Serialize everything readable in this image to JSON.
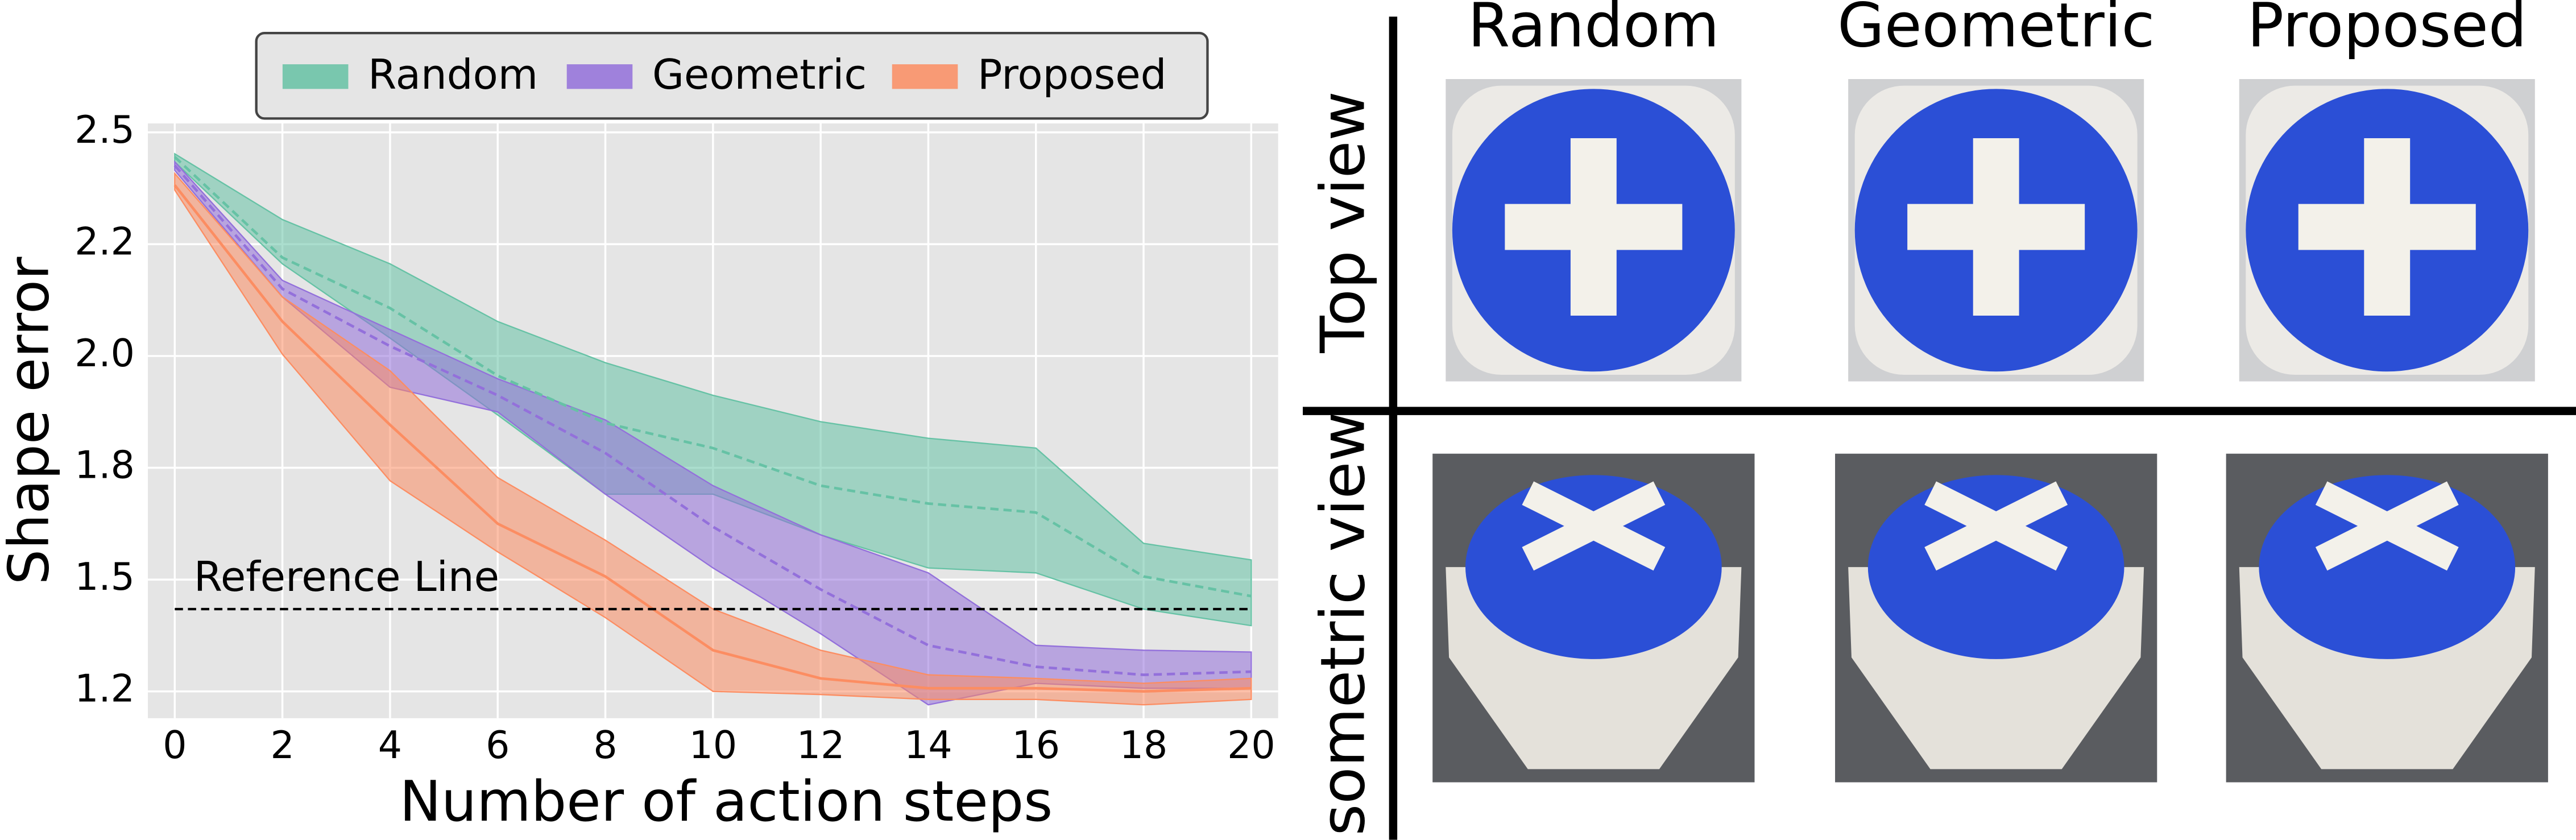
{
  "chart_data": {
    "type": "line",
    "x": [
      0,
      2,
      4,
      6,
      8,
      10,
      12,
      14,
      16,
      18,
      20
    ],
    "xlim": [
      -0.5,
      20.5
    ],
    "xticks": [
      0,
      2,
      4,
      6,
      8,
      10,
      12,
      14,
      16,
      18,
      20
    ],
    "ylim": [
      1.19,
      2.52
    ],
    "yticks": [
      {
        "value": 1.25,
        "label": "1.2"
      },
      1.5,
      {
        "value": 1.75,
        "label": "1.8"
      },
      {
        "value": 2,
        "label": "2.0"
      },
      {
        "value": 2.25,
        "label": "2.2"
      },
      2.5
    ],
    "xlabel": "Number of action steps",
    "ylabel": "Shape error",
    "grid": true,
    "legend": "top",
    "series": [
      {
        "name": "Random",
        "color": "#66c2a5",
        "values": [
          2.445,
          2.22,
          2.107,
          1.956,
          1.85,
          1.794,
          1.71,
          1.67,
          1.65,
          1.507,
          1.463
        ],
        "upper": [
          2.452,
          2.305,
          2.206,
          2.077,
          1.985,
          1.912,
          1.853,
          1.816,
          1.794,
          1.581,
          1.544
        ],
        "lower": [
          2.434,
          2.206,
          2.04,
          1.868,
          1.691,
          1.691,
          1.6,
          1.526,
          1.515,
          1.434,
          1.397
        ]
      },
      {
        "name": "Geometric",
        "color": "#9370db",
        "values": [
          2.426,
          2.15,
          2.022,
          1.912,
          1.783,
          1.618,
          1.478,
          1.353,
          1.305,
          1.287,
          1.294
        ],
        "upper": [
          2.434,
          2.169,
          2.059,
          1.949,
          1.857,
          1.71,
          1.6,
          1.515,
          1.353,
          1.342,
          1.338
        ],
        "lower": [
          2.415,
          2.132,
          1.93,
          1.875,
          1.691,
          1.526,
          1.379,
          1.22,
          1.268,
          1.257,
          1.257
        ]
      },
      {
        "name": "Proposed",
        "color": "#fc8d62",
        "values": [
          2.382,
          2.077,
          1.846,
          1.625,
          1.507,
          1.342,
          1.279,
          1.257,
          1.257,
          1.25,
          1.257
        ],
        "upper": [
          2.408,
          2.132,
          1.967,
          1.728,
          1.588,
          1.434,
          1.342,
          1.287,
          1.279,
          1.268,
          1.279
        ],
        "lower": [
          2.371,
          2.004,
          1.721,
          1.562,
          1.415,
          1.25,
          1.243,
          1.232,
          1.232,
          1.22,
          1.232
        ]
      }
    ],
    "reference_line": {
      "label": "Reference Line",
      "value": 1.434
    }
  },
  "panel": {
    "columns": [
      "Random",
      "Geometric",
      "Proposed"
    ],
    "rows": [
      "Top view",
      "Isometric view"
    ]
  }
}
